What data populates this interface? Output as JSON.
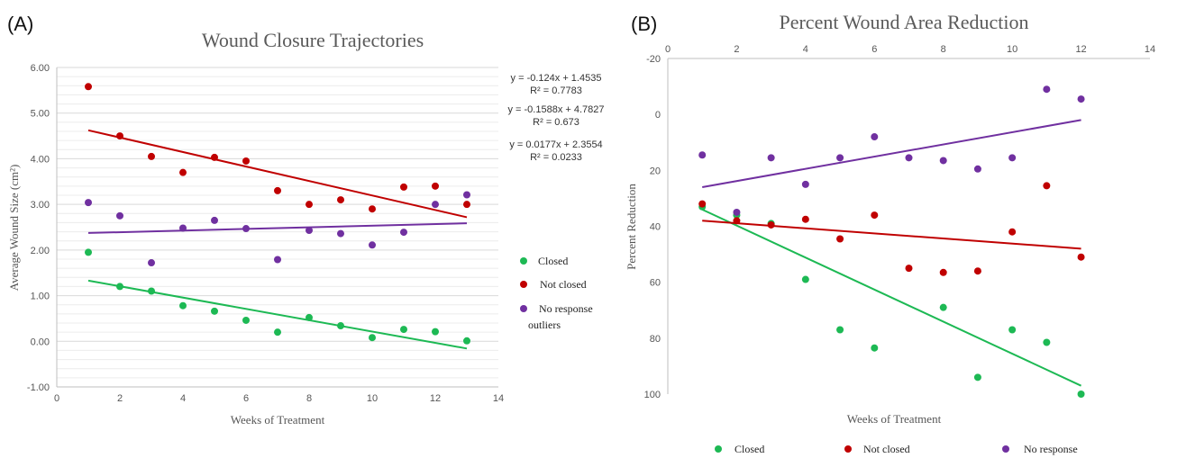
{
  "colors": {
    "closed": "#1db954",
    "not_closed": "#c00000",
    "no_response": "#7030a0"
  },
  "chart_data": [
    {
      "panel": "(A)",
      "type": "scatter",
      "title": "Wound Closure Trajectories",
      "xlabel": "Weeks of Treatment",
      "ylabel": "Average Wound Size (cm²)",
      "xlim": [
        0,
        14
      ],
      "ylim": [
        -1,
        6
      ],
      "xticks": [
        "0",
        "2",
        "4",
        "6",
        "8",
        "10",
        "12",
        "14"
      ],
      "yticks": [
        "-1.00",
        "0.00",
        "1.00",
        "2.00",
        "3.00",
        "4.00",
        "5.00",
        "6.00"
      ],
      "grid": true,
      "legend_placement": "right",
      "legend_note": "outliers",
      "equations": [
        {
          "eq": "y = -0.124x + 1.4535",
          "r2": "R² = 0.7783"
        },
        {
          "eq": "y = -0.1588x + 4.7827",
          "r2": "R² = 0.673"
        },
        {
          "eq": "y = 0.0177x + 2.3554",
          "r2": "R² = 0.0233"
        }
      ],
      "series": [
        {
          "name": "Closed",
          "color": "#1db954",
          "x": [
            1,
            2,
            3,
            4,
            5,
            6,
            7,
            8,
            9,
            10,
            11,
            12,
            13
          ],
          "y": [
            1.95,
            1.2,
            1.1,
            0.78,
            0.66,
            0.46,
            0.2,
            0.52,
            0.34,
            0.08,
            0.26,
            0.21,
            0.01
          ],
          "trend": {
            "slope": -0.124,
            "intercept": 1.4535,
            "x": [
              1,
              13
            ]
          }
        },
        {
          "name": "Not closed",
          "color": "#c00000",
          "x": [
            1,
            2,
            3,
            4,
            5,
            6,
            7,
            8,
            9,
            10,
            11,
            12,
            13
          ],
          "y": [
            5.58,
            4.5,
            4.05,
            3.7,
            4.03,
            3.95,
            3.3,
            3.0,
            3.1,
            2.9,
            3.38,
            3.4,
            3.0
          ],
          "trend": {
            "slope": -0.1588,
            "intercept": 4.7827,
            "x": [
              1,
              13
            ]
          }
        },
        {
          "name": "No response",
          "color": "#7030a0",
          "x": [
            1,
            2,
            3,
            4,
            5,
            6,
            7,
            8,
            9,
            10,
            11,
            12,
            13
          ],
          "y": [
            3.04,
            2.75,
            1.72,
            2.48,
            2.65,
            2.47,
            1.79,
            2.43,
            2.36,
            2.11,
            2.39,
            3.0,
            3.21
          ],
          "trend": {
            "slope": 0.0177,
            "intercept": 2.3554,
            "x": [
              1,
              13
            ]
          }
        }
      ]
    },
    {
      "panel": "(B)",
      "type": "scatter",
      "title": "Percent Wound Area Reduction",
      "xlabel": "Weeks of Treatment",
      "ylabel": "Percent Reduction",
      "xlim": [
        0,
        14
      ],
      "ylim": [
        -20,
        100
      ],
      "y_inverted": true,
      "x_axis_position": "top",
      "xticks": [
        "0",
        "2",
        "4",
        "6",
        "8",
        "10",
        "12",
        "14"
      ],
      "yticks": [
        "-20",
        "0",
        "20",
        "40",
        "60",
        "80",
        "100"
      ],
      "grid": false,
      "legend_placement": "bottom",
      "series": [
        {
          "name": "Closed",
          "color": "#1db954",
          "x": [
            1,
            2,
            3,
            4,
            5,
            6,
            8,
            9,
            10,
            11,
            12
          ],
          "y": [
            33,
            36,
            39,
            59,
            77,
            83.5,
            69,
            94,
            77,
            81.5,
            100
          ],
          "trend": {
            "x": [
              1,
              12
            ],
            "y": [
              34,
              97
            ]
          }
        },
        {
          "name": "Not closed",
          "color": "#c00000",
          "x": [
            1,
            2,
            3,
            4,
            5,
            6,
            7,
            8,
            9,
            10,
            11,
            12
          ],
          "y": [
            32,
            38,
            39.5,
            37.5,
            44.5,
            36,
            55,
            56.5,
            56,
            42,
            25.5,
            51
          ],
          "trend": {
            "x": [
              1,
              12
            ],
            "y": [
              38,
              48
            ]
          }
        },
        {
          "name": "No response",
          "color": "#7030a0",
          "x": [
            1,
            2,
            3,
            4,
            5,
            6,
            7,
            8,
            9,
            10,
            11,
            12
          ],
          "y": [
            14.5,
            35,
            15.5,
            25,
            15.5,
            8,
            15.5,
            16.5,
            19.5,
            15.5,
            -9,
            -5.5
          ],
          "trend": {
            "x": [
              1,
              12
            ],
            "y": [
              26,
              2
            ]
          }
        }
      ]
    }
  ]
}
